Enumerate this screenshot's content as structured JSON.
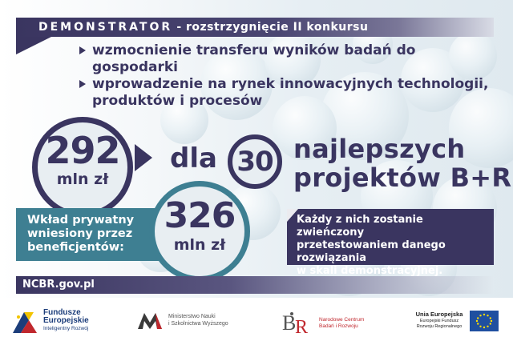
{
  "header": {
    "title": "DEMONSTRATOR",
    "subtitle": "- rozstrzygnięcie II konkursu"
  },
  "bullets": [
    {
      "text": "wzmocnienie transferu wyników badań do gospodarki"
    },
    {
      "line1": "wprowadzenie na rynek innowacyjnych technologii,",
      "line2": "produktów i procesów"
    }
  ],
  "budget": {
    "value": "292",
    "unit": "mln zł"
  },
  "connector": "dla",
  "projects": {
    "count": "30",
    "line1": "najlepszych",
    "line2": "projektów B+R"
  },
  "private": {
    "label_line1": "Wkład prywatny",
    "label_line2": "wniesiony przez",
    "label_line3": "beneficjentów:",
    "value": "326",
    "unit": "mln zł"
  },
  "description": {
    "line1": "Każdy z nich zostanie zwieńczony",
    "line2": "przetestowaniem danego rozwiązania",
    "line3": "w skali demonstracyjnej."
  },
  "website": "NCBR.gov.pl",
  "logos": {
    "fundusze": {
      "line1": "Fundusze",
      "line2": "Europejskie",
      "line3": "Inteligentny Rozwój"
    },
    "ministry": {
      "line1": "Ministerstwo Nauki",
      "line2": "i Szkolnictwa Wyższego"
    },
    "ncbr": {
      "line1": "Narodowe Centrum",
      "line2": "Badań i Rozwoju"
    },
    "eu": {
      "line1": "Unia Europejska",
      "line2": "Europejski Fundusz",
      "line3": "Rozwoju Regionalnego"
    }
  },
  "colors": {
    "navy": "#3a3560",
    "teal": "#3e7f92",
    "bubble": "#c6d6df",
    "ncbr_red": "#c0272d",
    "eu_blue": "#1f4fa0",
    "eu_yellow": "#ffdd00"
  }
}
